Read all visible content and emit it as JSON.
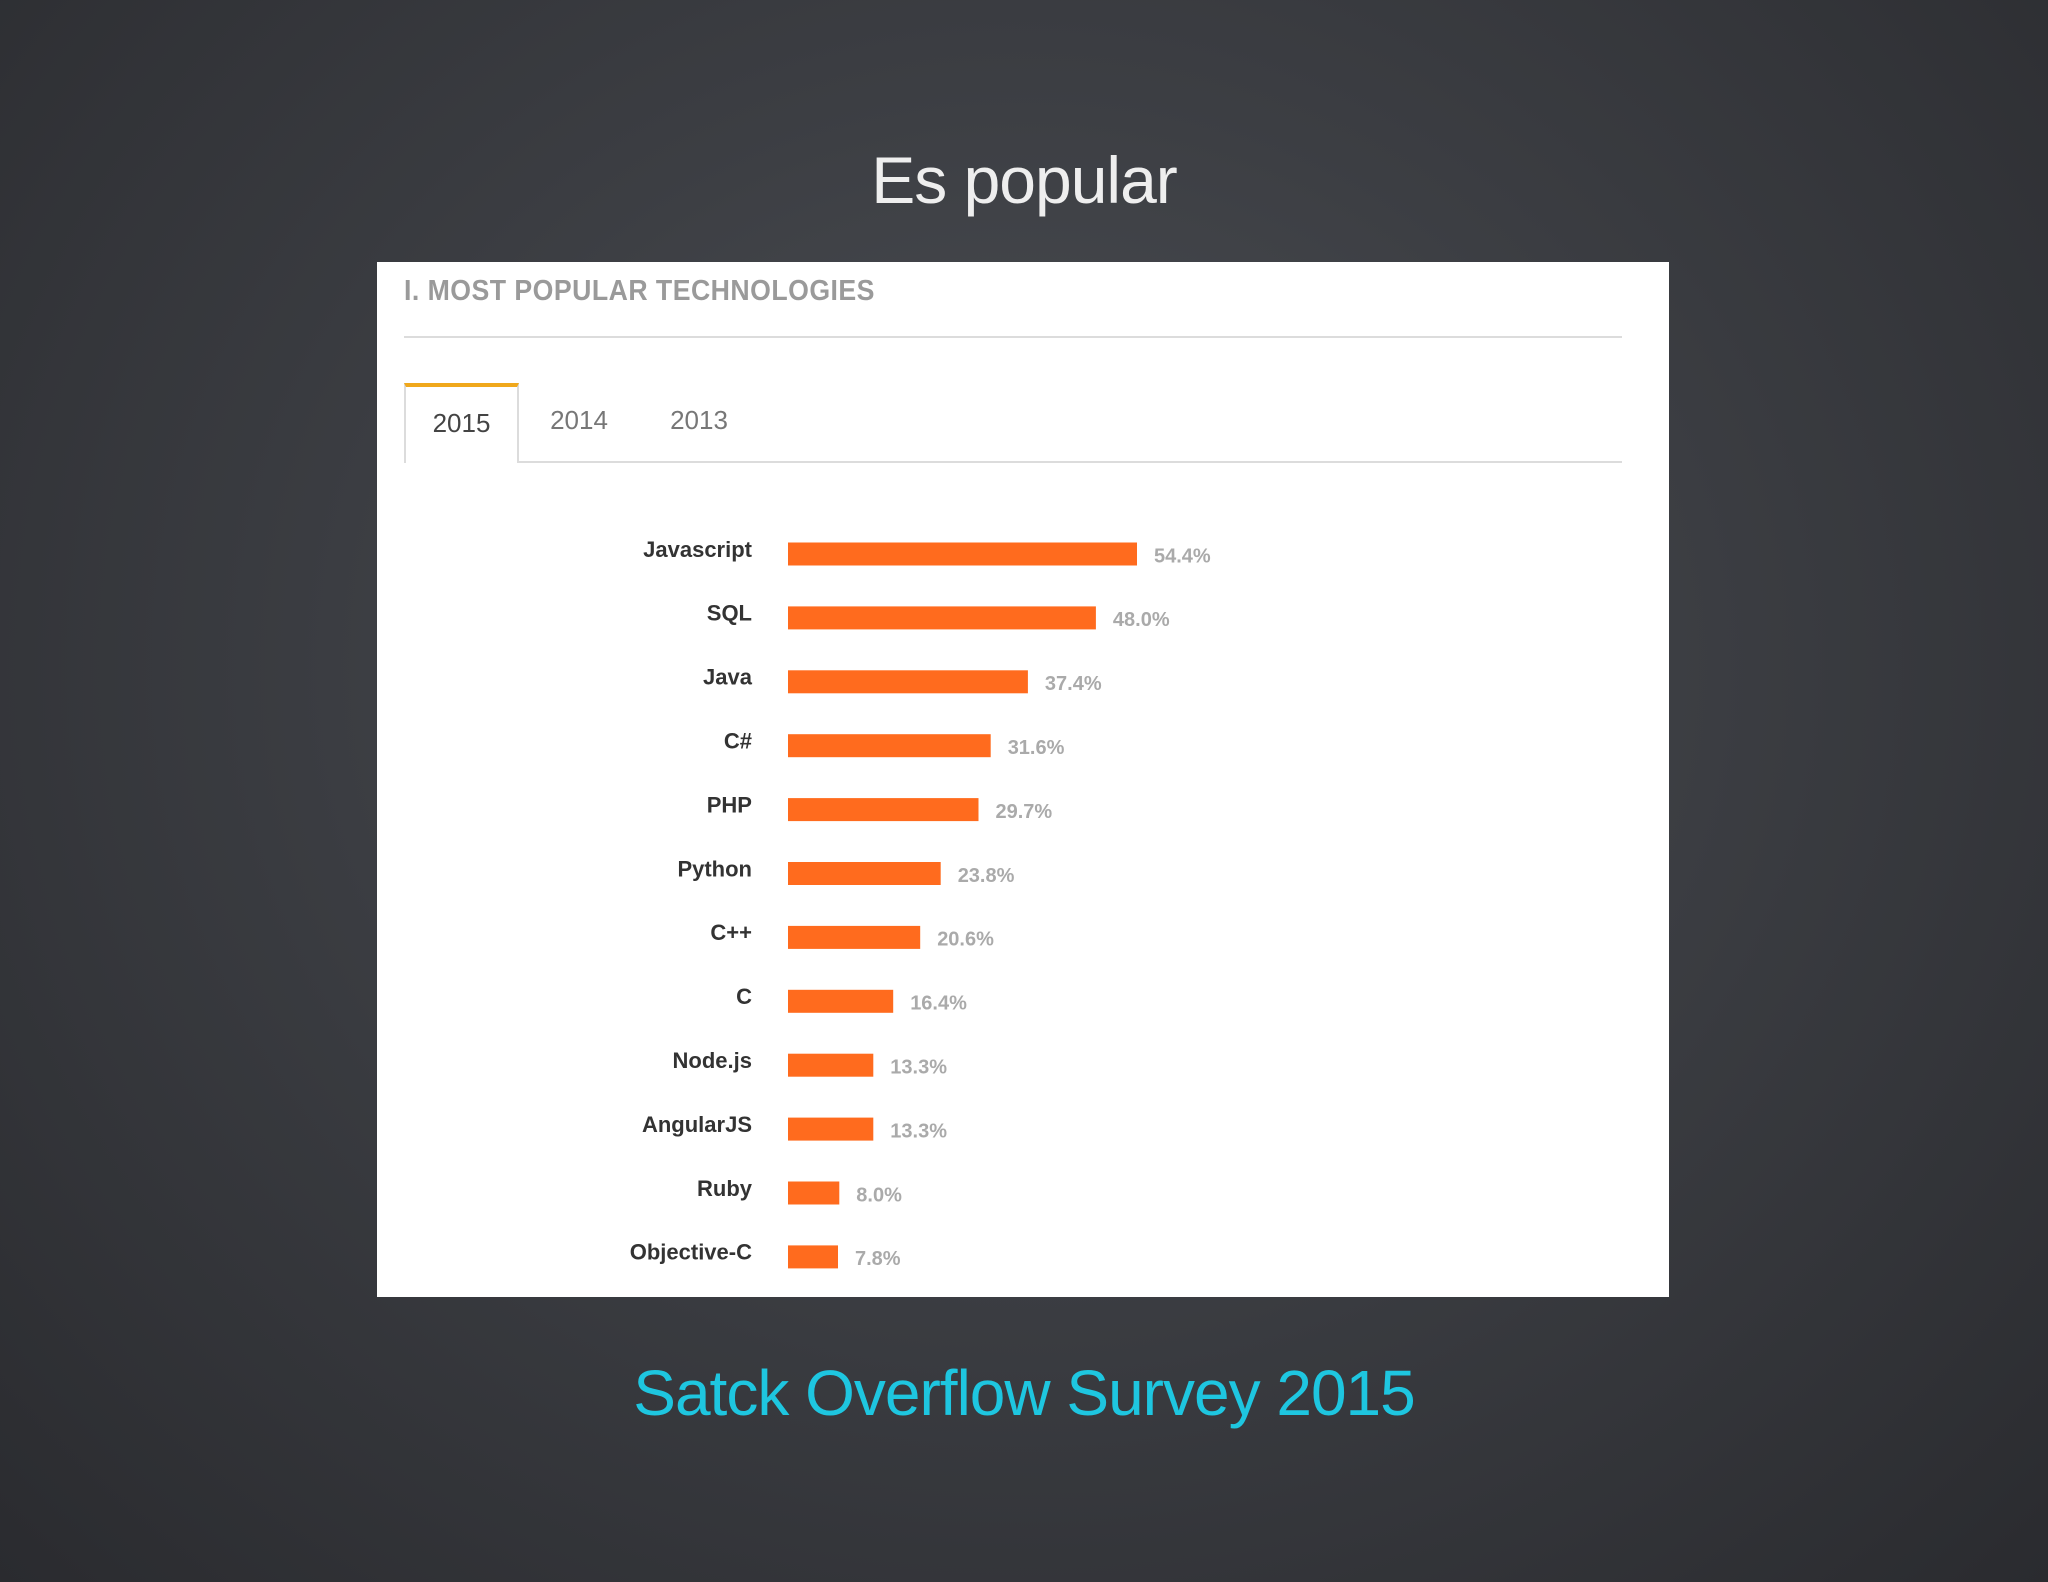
{
  "slide": {
    "title": "Es popular",
    "caption": "Satck Overflow Survey 2015"
  },
  "panel": {
    "heading": "I. MOST POPULAR TECHNOLOGIES",
    "tabs": [
      {
        "label": "2015",
        "active": true
      },
      {
        "label": "2014",
        "active": false
      },
      {
        "label": "2013",
        "active": false
      }
    ]
  },
  "colors": {
    "bar": "#ff6b1e",
    "accent_tab": "#f0a81c",
    "caption": "#1ec6e0"
  },
  "chart_data": {
    "type": "bar",
    "orientation": "horizontal",
    "categories": [
      "Javascript",
      "SQL",
      "Java",
      "C#",
      "PHP",
      "Python",
      "C++",
      "C",
      "Node.js",
      "AngularJS",
      "Ruby",
      "Objective-C"
    ],
    "values": [
      54.4,
      48.0,
      37.4,
      31.6,
      29.7,
      23.8,
      20.6,
      16.4,
      13.3,
      13.3,
      8.0,
      7.8
    ],
    "value_labels": [
      "54.4%",
      "48.0%",
      "37.4%",
      "31.6%",
      "29.7%",
      "23.8%",
      "20.6%",
      "16.4%",
      "13.3%",
      "13.3%",
      "8.0%",
      "7.8%"
    ],
    "unit": "%",
    "title": "",
    "xlabel": "",
    "ylabel": "",
    "grid": false,
    "legend": "none"
  }
}
